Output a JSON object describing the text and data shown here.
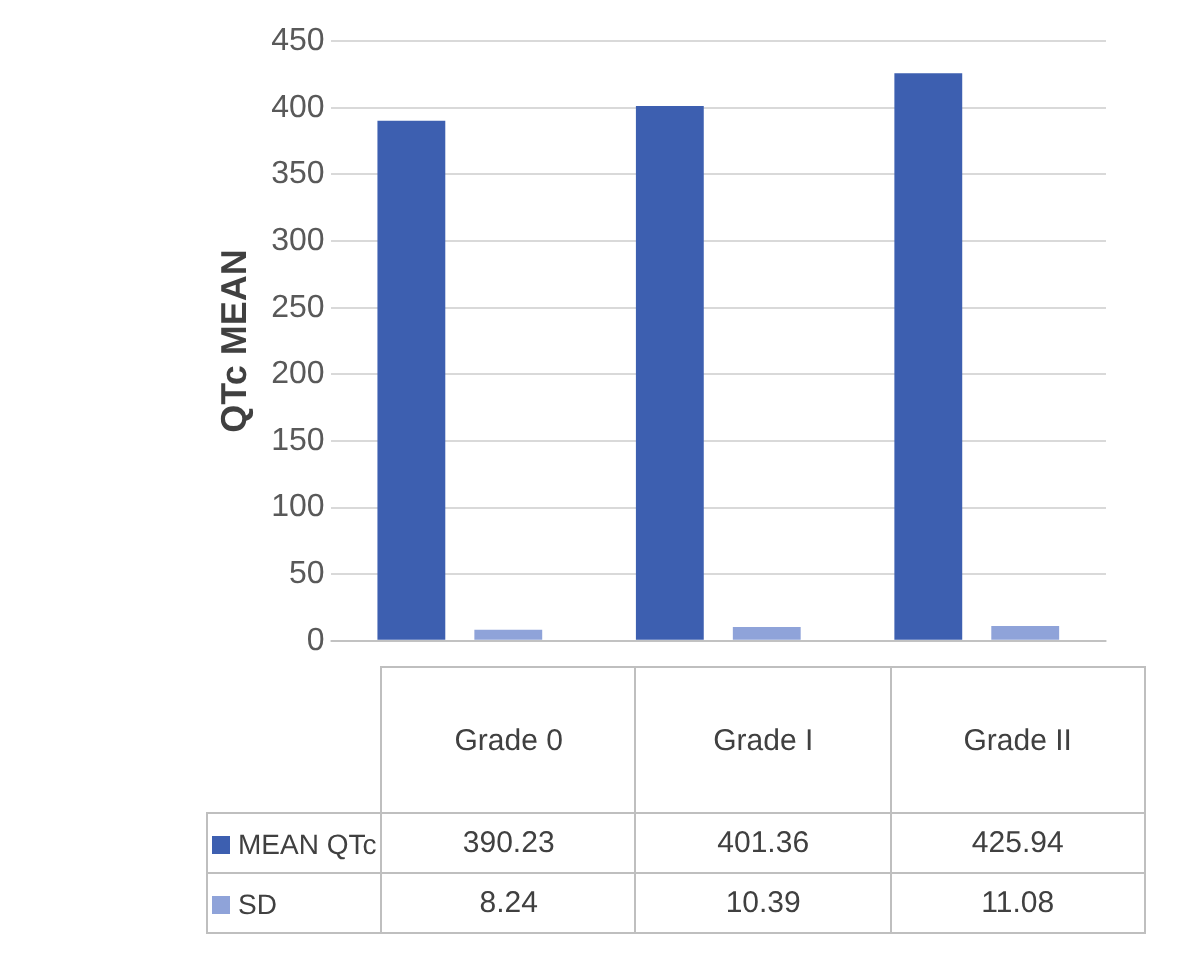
{
  "chart_data": {
    "type": "bar",
    "ylabel": "QTc MEAN",
    "categories": [
      "Grade 0",
      "Grade I",
      "Grade II"
    ],
    "series": [
      {
        "name": "MEAN QTc",
        "color": "#3d5fb0",
        "values": [
          390.23,
          401.36,
          425.94
        ]
      },
      {
        "name": "SD",
        "color": "#8fa3d9",
        "values": [
          8.24,
          10.39,
          11.08
        ]
      }
    ],
    "ylim": [
      0,
      450
    ],
    "yticks": [
      0,
      50,
      100,
      150,
      200,
      250,
      300,
      350,
      400,
      450
    ],
    "grid": "y",
    "legend": "bottom",
    "data_labels": true
  }
}
